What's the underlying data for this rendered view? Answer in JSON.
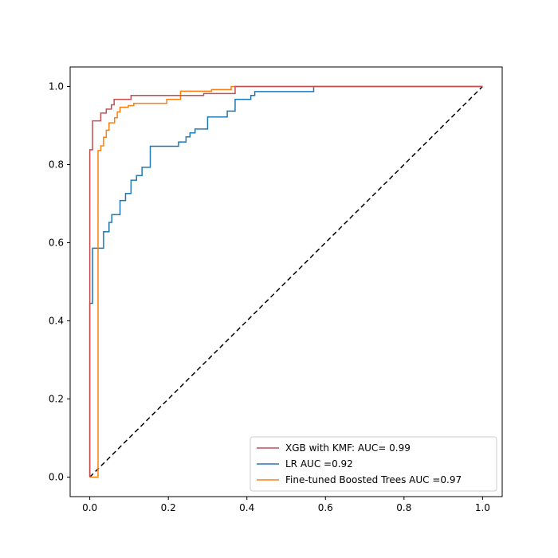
{
  "chart_data": {
    "type": "line",
    "title": "",
    "xlabel": "",
    "ylabel": "",
    "xlim": [
      -0.05,
      1.05
    ],
    "ylim": [
      -0.05,
      1.05
    ],
    "xticks": [
      0.0,
      0.2,
      0.4,
      0.6,
      0.8,
      1.0
    ],
    "yticks": [
      0.0,
      0.2,
      0.4,
      0.6,
      0.8,
      1.0
    ],
    "xtick_labels": [
      "0.0",
      "0.2",
      "0.4",
      "0.6",
      "0.8",
      "1.0"
    ],
    "ytick_labels": [
      "0.0",
      "0.2",
      "0.4",
      "0.6",
      "0.8",
      "1.0"
    ],
    "grid": false,
    "legend_position": "lower-right",
    "series": [
      {
        "name": "XGB with KMF: AUC= 0.99",
        "color": "#c44e52",
        "x": [
          0.0,
          0.0,
          0.0,
          0.0,
          0.007,
          0.007,
          0.028,
          0.028,
          0.042,
          0.042,
          0.055,
          0.055,
          0.062,
          0.062,
          0.105,
          0.105,
          0.29,
          0.29,
          0.37,
          0.37,
          1.0
        ],
        "y": [
          0.0,
          0.445,
          0.445,
          0.838,
          0.838,
          0.912,
          0.912,
          0.932,
          0.932,
          0.942,
          0.942,
          0.953,
          0.953,
          0.967,
          0.967,
          0.977,
          0.977,
          0.982,
          0.982,
          1.0,
          1.0
        ]
      },
      {
        "name": "LR AUC =0.92",
        "color": "#1f77b4",
        "x": [
          0.0,
          0.0,
          0.007,
          0.007,
          0.014,
          0.014,
          0.035,
          0.035,
          0.049,
          0.049,
          0.056,
          0.056,
          0.063,
          0.063,
          0.077,
          0.077,
          0.091,
          0.091,
          0.105,
          0.105,
          0.119,
          0.119,
          0.133,
          0.133,
          0.147,
          0.147,
          0.154,
          0.154,
          0.226,
          0.226,
          0.245,
          0.245,
          0.255,
          0.255,
          0.268,
          0.268,
          0.3,
          0.3,
          0.35,
          0.35,
          0.37,
          0.37,
          0.41,
          0.41,
          0.42,
          0.42,
          0.57,
          0.57,
          1.0
        ],
        "y": [
          0.0,
          0.445,
          0.445,
          0.586,
          0.586,
          0.586,
          0.586,
          0.628,
          0.628,
          0.652,
          0.652,
          0.672,
          0.672,
          0.672,
          0.672,
          0.708,
          0.708,
          0.726,
          0.726,
          0.76,
          0.76,
          0.772,
          0.772,
          0.793,
          0.793,
          0.793,
          0.793,
          0.847,
          0.847,
          0.858,
          0.858,
          0.871,
          0.871,
          0.881,
          0.881,
          0.891,
          0.891,
          0.922,
          0.922,
          0.937,
          0.937,
          0.967,
          0.967,
          0.977,
          0.977,
          0.987,
          0.987,
          1.0,
          1.0
        ]
      },
      {
        "name": "Fine-tuned Boosted Trees AUC =0.97",
        "color": "#ff7f0e",
        "x": [
          0.0,
          0.021,
          0.021,
          0.028,
          0.028,
          0.035,
          0.035,
          0.042,
          0.042,
          0.049,
          0.049,
          0.063,
          0.063,
          0.07,
          0.07,
          0.077,
          0.077,
          0.098,
          0.098,
          0.112,
          0.112,
          0.196,
          0.196,
          0.231,
          0.231,
          0.31,
          0.31,
          0.36,
          0.36,
          1.0
        ],
        "y": [
          0.0,
          0.0,
          0.836,
          0.836,
          0.848,
          0.848,
          0.87,
          0.87,
          0.888,
          0.888,
          0.907,
          0.907,
          0.92,
          0.92,
          0.935,
          0.935,
          0.947,
          0.947,
          0.951,
          0.951,
          0.957,
          0.957,
          0.967,
          0.967,
          0.988,
          0.988,
          0.992,
          0.992,
          1.0,
          1.0
        ]
      }
    ],
    "reference_line": {
      "color": "#000000",
      "style": "dashed",
      "x": [
        0.0,
        1.0
      ],
      "y": [
        0.0,
        1.0
      ]
    }
  }
}
